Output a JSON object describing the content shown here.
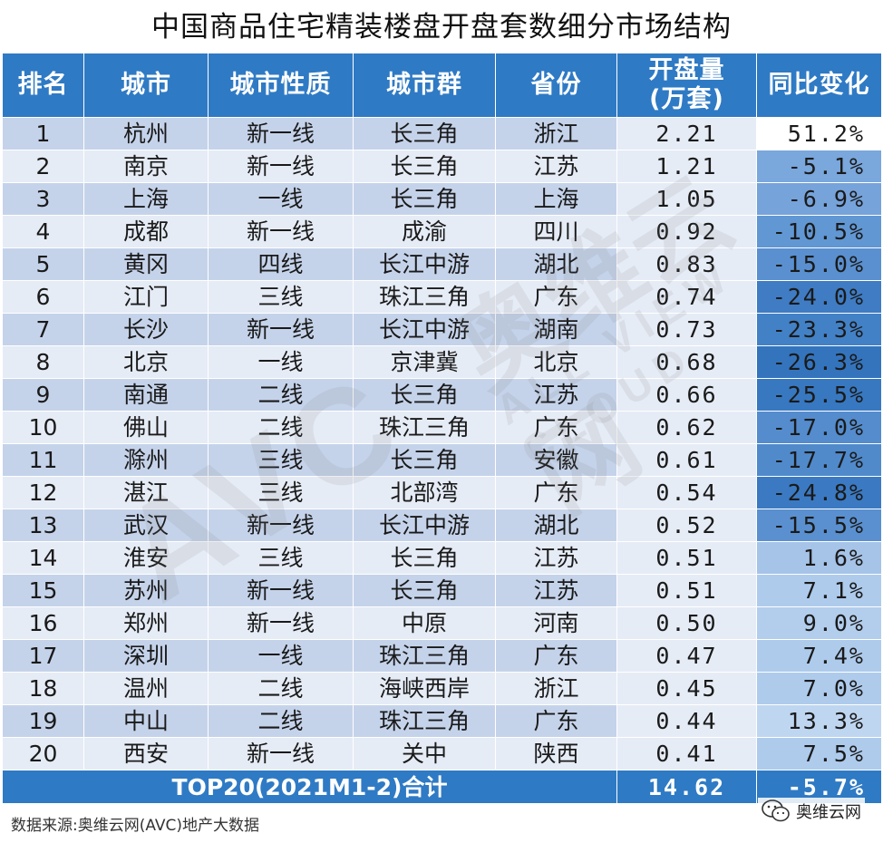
{
  "title": "中国商品住宅精装楼盘开盘套数细分市场结构",
  "headers": {
    "rank": "排名",
    "city": "城市",
    "city_type": "城市性质",
    "cluster": "城市群",
    "province": "省份",
    "volume_line1": "开盘量",
    "volume_line2": "(万套)",
    "change": "同比变化"
  },
  "rows": [
    {
      "rank": "1",
      "city": "杭州",
      "city_type": "新一线",
      "cluster": "长三角",
      "province": "浙江",
      "volume": "2.21",
      "change": "51.2%",
      "change_bg": "#ffffff"
    },
    {
      "rank": "2",
      "city": "南京",
      "city_type": "新一线",
      "cluster": "长三角",
      "province": "江苏",
      "volume": "1.21",
      "change": "-5.1%",
      "change_bg": "#7aa7dc"
    },
    {
      "rank": "3",
      "city": "上海",
      "city_type": "一线",
      "cluster": "长三角",
      "province": "上海",
      "volume": "1.05",
      "change": "-6.9%",
      "change_bg": "#76a3da"
    },
    {
      "rank": "4",
      "city": "成都",
      "city_type": "新一线",
      "cluster": "成渝",
      "province": "四川",
      "volume": "0.92",
      "change": "-10.5%",
      "change_bg": "#6197d3"
    },
    {
      "rank": "5",
      "city": "黄冈",
      "city_type": "四线",
      "cluster": "长江中游",
      "province": "湖北",
      "volume": "0.83",
      "change": "-15.0%",
      "change_bg": "#5a90cf"
    },
    {
      "rank": "6",
      "city": "江门",
      "city_type": "三线",
      "cluster": "珠江三角",
      "province": "广东",
      "volume": "0.74",
      "change": "-24.0%",
      "change_bg": "#3f7cc3"
    },
    {
      "rank": "7",
      "city": "长沙",
      "city_type": "新一线",
      "cluster": "长江中游",
      "province": "湖南",
      "volume": "0.73",
      "change": "-23.3%",
      "change_bg": "#4381c6"
    },
    {
      "rank": "8",
      "city": "北京",
      "city_type": "一线",
      "cluster": "京津冀",
      "province": "北京",
      "volume": "0.68",
      "change": "-26.3%",
      "change_bg": "#3474bd"
    },
    {
      "rank": "9",
      "city": "南通",
      "city_type": "二线",
      "cluster": "长三角",
      "province": "江苏",
      "volume": "0.66",
      "change": "-25.5%",
      "change_bg": "#3878c0"
    },
    {
      "rank": "10",
      "city": "佛山",
      "city_type": "二线",
      "cluster": "珠江三角",
      "province": "广东",
      "volume": "0.62",
      "change": "-17.0%",
      "change_bg": "#548ccd"
    },
    {
      "rank": "11",
      "city": "滁州",
      "city_type": "三线",
      "cluster": "长三角",
      "province": "安徽",
      "volume": "0.61",
      "change": "-17.7%",
      "change_bg": "#508acb"
    },
    {
      "rank": "12",
      "city": "湛江",
      "city_type": "三线",
      "cluster": "北部湾",
      "province": "广东",
      "volume": "0.54",
      "change": "-24.8%",
      "change_bg": "#3b7ac2"
    },
    {
      "rank": "13",
      "city": "武汉",
      "city_type": "新一线",
      "cluster": "长江中游",
      "province": "湖北",
      "volume": "0.52",
      "change": "-15.5%",
      "change_bg": "#5a90cf"
    },
    {
      "rank": "14",
      "city": "淮安",
      "city_type": "三线",
      "cluster": "长三角",
      "province": "江苏",
      "volume": "0.51",
      "change": "1.6%",
      "change_bg": "#a6c3e8"
    },
    {
      "rank": "15",
      "city": "苏州",
      "city_type": "新一线",
      "cluster": "长三角",
      "province": "江苏",
      "volume": "0.51",
      "change": "7.1%",
      "change_bg": "#aecbec"
    },
    {
      "rank": "16",
      "city": "郑州",
      "city_type": "新一线",
      "cluster": "中原",
      "province": "河南",
      "volume": "0.50",
      "change": "9.0%",
      "change_bg": "#b3ceed"
    },
    {
      "rank": "17",
      "city": "深圳",
      "city_type": "一线",
      "cluster": "珠江三角",
      "province": "广东",
      "volume": "0.47",
      "change": "7.4%",
      "change_bg": "#aecbec"
    },
    {
      "rank": "18",
      "city": "温州",
      "city_type": "二线",
      "cluster": "海峡西岸",
      "province": "浙江",
      "volume": "0.45",
      "change": "7.0%",
      "change_bg": "#aecbec"
    },
    {
      "rank": "19",
      "city": "中山",
      "city_type": "二线",
      "cluster": "珠江三角",
      "province": "广东",
      "volume": "0.44",
      "change": "13.3%",
      "change_bg": "#bfd6f1"
    },
    {
      "rank": "20",
      "city": "西安",
      "city_type": "新一线",
      "cluster": "关中",
      "province": "陕西",
      "volume": "0.41",
      "change": "7.5%",
      "change_bg": "#aecbec"
    }
  ],
  "total": {
    "label": "TOP20(2021M1-2)合计",
    "volume": "14.62",
    "change": "-5.7%"
  },
  "source": "数据来源:奥维云网(AVC)地产大数据",
  "watermark": {
    "letters": "AVC",
    "brand_cn": "奥维云网",
    "brand_en": "ALL VIEW CLOUD"
  },
  "brand": {
    "icon": "wechat-icon",
    "label": "奥维云网"
  },
  "colors": {
    "header_bg": "#2f7ac4",
    "row_odd": "#c5d3ea",
    "row_even": "#e6ecf6"
  }
}
